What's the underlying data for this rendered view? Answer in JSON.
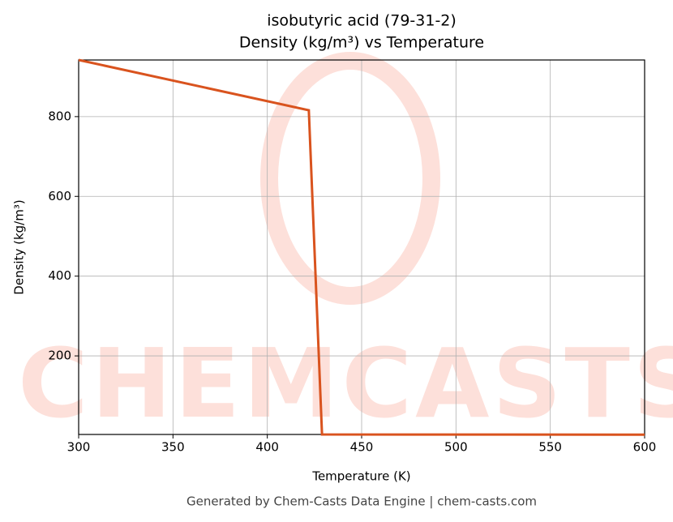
{
  "chart_data": {
    "type": "line",
    "title": "isobutyric acid (79-31-2)",
    "subtitle": "Density (kg/m³) vs Temperature",
    "x_label": "Temperature (K)",
    "y_label": "Density (kg/m³)",
    "watermark": "CHEMCASTS",
    "footer": "Generated by Chem-Casts Data Engine | chem-casts.com",
    "x": [
      300,
      422,
      429,
      600
    ],
    "series": [
      {
        "name": "Density",
        "color": "#d9531e",
        "values": [
          942,
          816,
          3,
          2.5
        ]
      }
    ],
    "xlim": [
      300,
      600
    ],
    "xticks": [
      300,
      350,
      400,
      450,
      500,
      550,
      600
    ],
    "ylim": [
      3,
      942
    ],
    "yticks": [
      200,
      400,
      600,
      800
    ],
    "grid": true
  }
}
